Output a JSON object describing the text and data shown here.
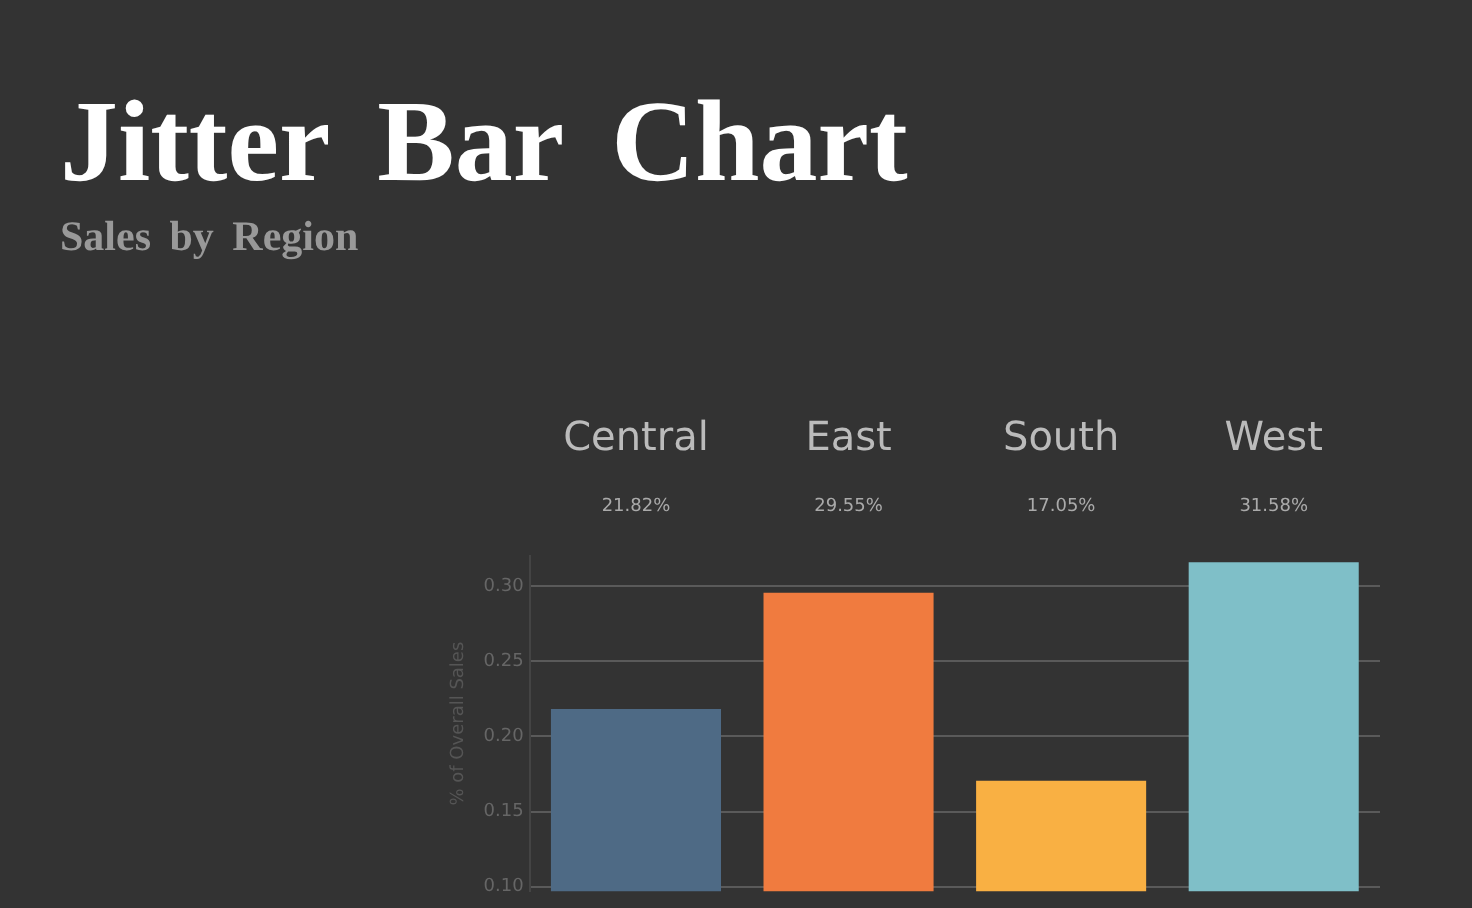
{
  "chart_data": {
    "type": "bar",
    "title": "Jitter Bar Chart",
    "subtitle": "Sales by Region",
    "ylabel": "% of Overall Sales",
    "categories": [
      "Central",
      "East",
      "South",
      "West"
    ],
    "values": [
      0.2182,
      0.2955,
      0.1705,
      0.3158
    ],
    "value_labels": [
      "21.82%",
      "29.55%",
      "17.05%",
      "31.58%"
    ],
    "colors": [
      "#4e6a85",
      "#f07b3f",
      "#f9b043",
      "#7fbfc8"
    ],
    "ylim": [
      0.097,
      0.32
    ],
    "yticks": [
      {
        "value": 0.1,
        "label": "0.10"
      },
      {
        "value": 0.15,
        "label": "0.15"
      },
      {
        "value": 0.2,
        "label": "0.20"
      },
      {
        "value": 0.25,
        "label": "0.25"
      },
      {
        "value": 0.3,
        "label": "0.30"
      }
    ],
    "grid": "y",
    "legend": false
  }
}
